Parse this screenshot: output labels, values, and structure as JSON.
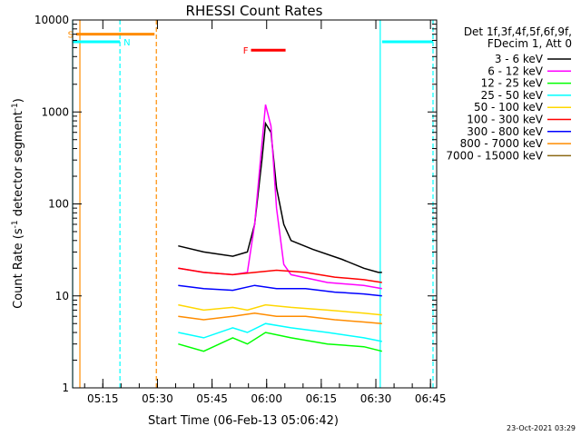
{
  "chart_data": {
    "type": "line",
    "title": "RHESSI Count Rates",
    "xlabel": "Start Time (06-Feb-13 05:06:42)",
    "ylabel_main": "Count Rate (s",
    "ylabel_sup": "-1",
    "ylabel_rest": " detector segment",
    "ylabel_sup2": "-1",
    "ylabel_close": ")",
    "y_scale": "log",
    "ylim": [
      1,
      10000
    ],
    "y_ticks": [
      {
        "value": 1,
        "label": "1"
      },
      {
        "value": 10,
        "label": "10"
      },
      {
        "value": 100,
        "label": "100"
      },
      {
        "value": 1000,
        "label": "1000"
      },
      {
        "value": 10000,
        "label": "10000"
      }
    ],
    "xlim_minutes": [
      0,
      100
    ],
    "x_ticks": [
      {
        "minute": 8.3,
        "label": "05:15"
      },
      {
        "minute": 23.3,
        "label": "05:30"
      },
      {
        "minute": 38.3,
        "label": "05:45"
      },
      {
        "minute": 53.3,
        "label": "06:00"
      },
      {
        "minute": 68.3,
        "label": "06:15"
      },
      {
        "minute": 83.3,
        "label": "06:30"
      },
      {
        "minute": 98.3,
        "label": "06:45"
      }
    ],
    "legend": {
      "header1": "Det 1f,3f,4f,5f,6f,9f,",
      "header2": "FDecim 1, Att 0",
      "placement": "right"
    },
    "series": [
      {
        "name": "3 - 6 keV",
        "color": "#000000",
        "points": [
          [
            29,
            35
          ],
          [
            36,
            30
          ],
          [
            44,
            27
          ],
          [
            48,
            30
          ],
          [
            50,
            60
          ],
          [
            52,
            300
          ],
          [
            53,
            750
          ],
          [
            54.5,
            600
          ],
          [
            56,
            150
          ],
          [
            58,
            60
          ],
          [
            60,
            40
          ],
          [
            66,
            32
          ],
          [
            74,
            25
          ],
          [
            80,
            20
          ],
          [
            84,
            18
          ],
          [
            85,
            18
          ]
        ]
      },
      {
        "name": "6 - 12 keV",
        "color": "#ff00ff",
        "points": [
          [
            29,
            20
          ],
          [
            36,
            18
          ],
          [
            44,
            17
          ],
          [
            48,
            18
          ],
          [
            50,
            60
          ],
          [
            52,
            450
          ],
          [
            53,
            1200
          ],
          [
            54.5,
            700
          ],
          [
            56,
            90
          ],
          [
            58,
            22
          ],
          [
            60,
            17
          ],
          [
            70,
            14
          ],
          [
            80,
            13
          ],
          [
            85,
            12
          ]
        ]
      },
      {
        "name": "12 - 25 keV",
        "color": "#00ff00",
        "points": [
          [
            29,
            3
          ],
          [
            36,
            2.5
          ],
          [
            44,
            3.5
          ],
          [
            48,
            3
          ],
          [
            53,
            4
          ],
          [
            60,
            3.5
          ],
          [
            70,
            3
          ],
          [
            80,
            2.8
          ],
          [
            85,
            2.5
          ]
        ]
      },
      {
        "name": "25 - 50 keV",
        "color": "#00ffff",
        "points": [
          [
            29,
            4
          ],
          [
            36,
            3.5
          ],
          [
            44,
            4.5
          ],
          [
            48,
            4
          ],
          [
            53,
            5
          ],
          [
            60,
            4.5
          ],
          [
            70,
            4
          ],
          [
            80,
            3.5
          ],
          [
            85,
            3.2
          ]
        ]
      },
      {
        "name": "50 - 100 keV",
        "color": "#ffd700",
        "points": [
          [
            29,
            8
          ],
          [
            36,
            7
          ],
          [
            44,
            7.5
          ],
          [
            48,
            7
          ],
          [
            53,
            8
          ],
          [
            60,
            7.5
          ],
          [
            70,
            7
          ],
          [
            80,
            6.5
          ],
          [
            85,
            6.2
          ]
        ]
      },
      {
        "name": "100 - 300 keV",
        "color": "#ff0000",
        "points": [
          [
            29,
            20
          ],
          [
            36,
            18
          ],
          [
            44,
            17
          ],
          [
            50,
            18
          ],
          [
            56,
            19
          ],
          [
            64,
            18
          ],
          [
            72,
            16
          ],
          [
            80,
            15
          ],
          [
            85,
            14
          ]
        ]
      },
      {
        "name": "300 - 800 keV",
        "color": "#0000ff",
        "points": [
          [
            29,
            13
          ],
          [
            36,
            12
          ],
          [
            44,
            11.5
          ],
          [
            50,
            13
          ],
          [
            56,
            12
          ],
          [
            64,
            12
          ],
          [
            72,
            11
          ],
          [
            80,
            10.5
          ],
          [
            85,
            10
          ]
        ]
      },
      {
        "name": "800 - 7000 keV",
        "color": "#ff8c00",
        "points": [
          [
            29,
            6
          ],
          [
            36,
            5.5
          ],
          [
            44,
            6
          ],
          [
            50,
            6.5
          ],
          [
            56,
            6
          ],
          [
            64,
            6
          ],
          [
            72,
            5.5
          ],
          [
            80,
            5.2
          ],
          [
            85,
            5
          ]
        ]
      },
      {
        "name": "7000 - 15000 keV",
        "color": "#8b6914",
        "points": []
      }
    ],
    "flags": [
      {
        "label": "S",
        "color": "#ff8c00",
        "x_start": 1,
        "x_end": 22.5,
        "y": 7000
      },
      {
        "label": "N",
        "color": "#00ffff",
        "x_start": 0,
        "x_end": 13,
        "y": 5800
      },
      {
        "label": "F",
        "color": "#ff0000",
        "x_start": 49,
        "x_end": 58.5,
        "y": 4700
      },
      {
        "label": "",
        "color": "#00ffff",
        "x_start": 85,
        "x_end": 99,
        "y": 5800
      }
    ],
    "vlines": [
      {
        "minute": 0,
        "color": "#00ffff",
        "dash": false
      },
      {
        "minute": 2,
        "color": "#ff8c00",
        "dash": false
      },
      {
        "minute": 13,
        "color": "#00ffff",
        "dash": true
      },
      {
        "minute": 23,
        "color": "#ff8c00",
        "dash": true
      },
      {
        "minute": 84.5,
        "color": "#00ffff",
        "dash": false
      },
      {
        "minute": 99,
        "color": "#00ffff",
        "dash": true
      }
    ]
  },
  "footer": {
    "timestamp": "23-Oct-2021 03:29"
  }
}
